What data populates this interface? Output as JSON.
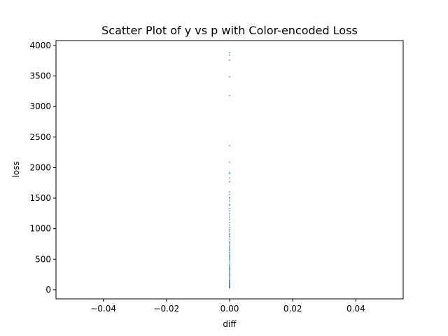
{
  "chart_data": {
    "type": "scatter",
    "title": "Scatter Plot of y vs p with Color-encoded Loss",
    "xlabel": "diff",
    "ylabel": "loss",
    "xlim": [
      -0.055,
      0.055
    ],
    "ylim": [
      -150,
      4080
    ],
    "xticks": [
      -0.04,
      -0.02,
      0.0,
      0.02,
      0.04
    ],
    "xtick_labels": [
      "−0.04",
      "−0.02",
      "0.00",
      "0.02",
      "0.04"
    ],
    "yticks": [
      0,
      500,
      1000,
      1500,
      2000,
      2500,
      3000,
      3500,
      4000
    ],
    "ytick_labels": [
      "0",
      "500",
      "1000",
      "1500",
      "2000",
      "2500",
      "3000",
      "3500",
      "4000"
    ],
    "grid": false,
    "point_color": "#1f77b4",
    "series": [
      {
        "name": "loss",
        "x": [
          0,
          0,
          0,
          0,
          0,
          0,
          0,
          0,
          0,
          0,
          0,
          0,
          0,
          0,
          0,
          0,
          0,
          0,
          0,
          0,
          0,
          0,
          0,
          0,
          0,
          0,
          0,
          0,
          0,
          0,
          0,
          0,
          0,
          0,
          0,
          0,
          0,
          0,
          0,
          0,
          0,
          0,
          0,
          0,
          0,
          0,
          0,
          0,
          0,
          0,
          0,
          0,
          0,
          0,
          0,
          0,
          0,
          0,
          0,
          0,
          0,
          0,
          0,
          0,
          0,
          0,
          0,
          0,
          0,
          0,
          0,
          0,
          0,
          0,
          0,
          0,
          0,
          0,
          0,
          0
        ],
        "y": [
          3880,
          3840,
          3760,
          3490,
          3180,
          2360,
          2090,
          1920,
          1900,
          1830,
          1770,
          1600,
          1560,
          1510,
          1490,
          1450,
          1400,
          1380,
          1330,
          1290,
          1250,
          1210,
          1180,
          1150,
          1100,
          1060,
          1020,
          990,
          960,
          920,
          900,
          880,
          860,
          820,
          790,
          770,
          750,
          720,
          700,
          680,
          660,
          640,
          610,
          580,
          560,
          540,
          520,
          500,
          480,
          450,
          420,
          400,
          380,
          360,
          340,
          320,
          300,
          280,
          260,
          240,
          220,
          200,
          180,
          160,
          140,
          120,
          110,
          100,
          90,
          80,
          70,
          60,
          50,
          45,
          40,
          35,
          30,
          150,
          250,
          350
        ]
      }
    ]
  }
}
